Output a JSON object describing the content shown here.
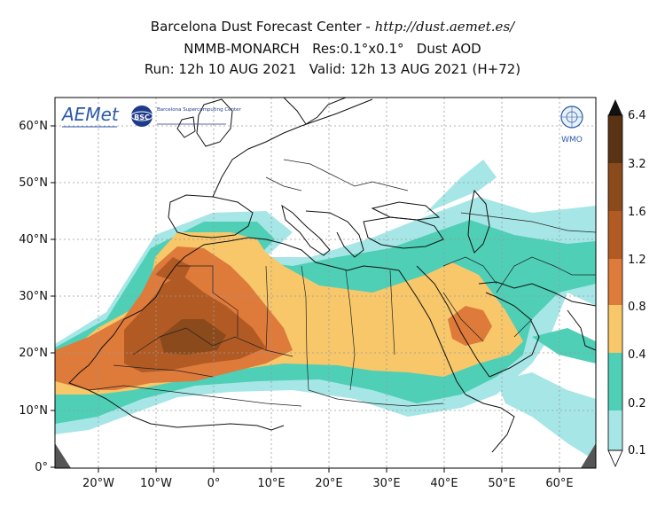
{
  "title": {
    "line1_prefix": "Barcelona Dust Forecast Center - ",
    "line1_url": "http://dust.aemet.es/",
    "line2": "NMMB-MONARCH   Res:0.1°x0.1°   Dust AOD",
    "line3": "Run: 12h 10 AUG 2021   Valid: 12h 13 AUG 2021 (H+72)"
  },
  "logos": {
    "aemet": "AEMet",
    "bsc": "BSC",
    "bsc_text": "Barcelona Supercomputing Center",
    "wmo": "WMO"
  },
  "axes": {
    "lat_labels": [
      "0°",
      "10°N",
      "20°N",
      "30°N",
      "40°N",
      "50°N",
      "60°N"
    ],
    "lon_labels": [
      "20°W",
      "10°W",
      "0°",
      "10°E",
      "20°E",
      "30°E",
      "40°E",
      "50°E",
      "60°E"
    ]
  },
  "colorbar": {
    "ticks": [
      "0.1",
      "0.2",
      "0.4",
      "0.8",
      "1.2",
      "1.6",
      "3.2",
      "6.4"
    ],
    "colors": [
      "#a6e6e6",
      "#4ecfb6",
      "#f7c76a",
      "#de7a3a",
      "#b25a24",
      "#8a4a1c",
      "#5a3214"
    ]
  }
}
